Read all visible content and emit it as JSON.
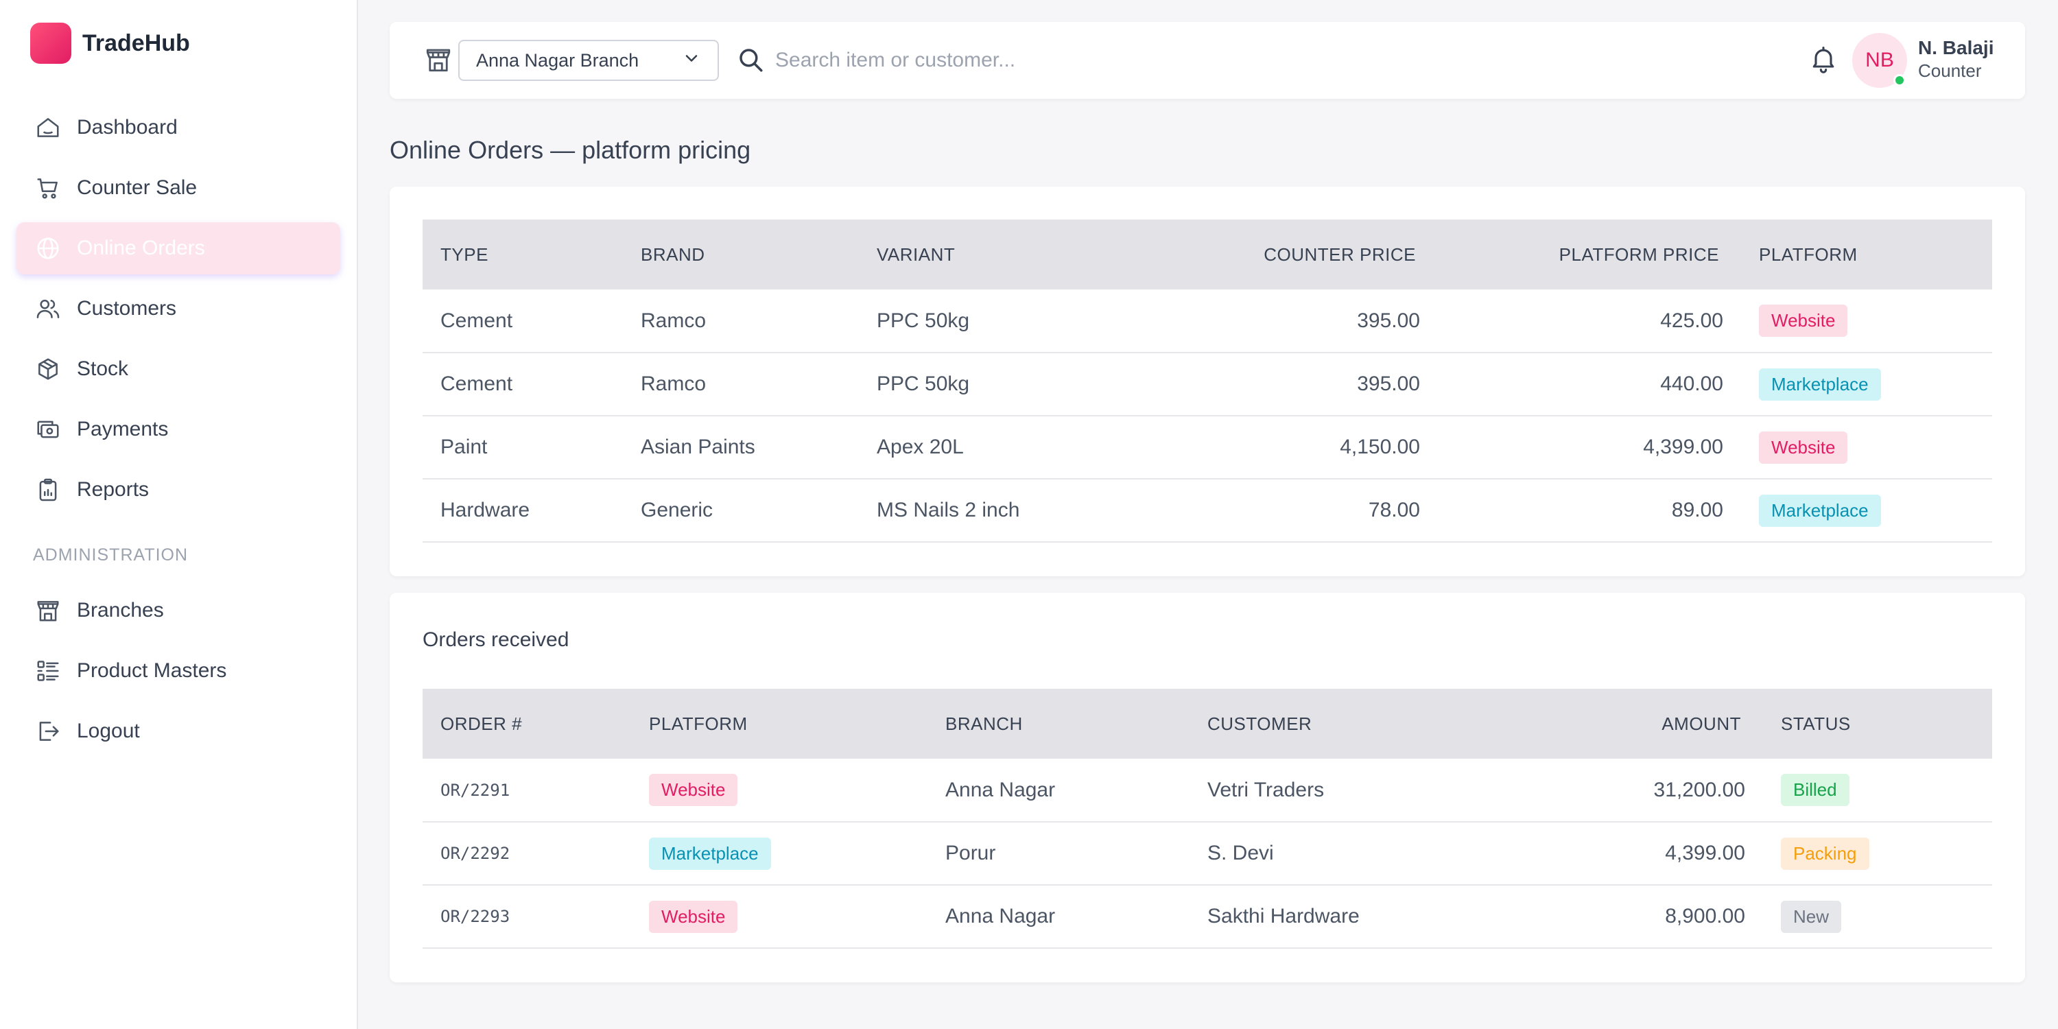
{
  "app": {
    "name": "TradeHub"
  },
  "sidebar": {
    "items": [
      {
        "label": "Dashboard",
        "icon": "home-icon"
      },
      {
        "label": "Counter Sale",
        "icon": "cart-icon"
      },
      {
        "label": "Online Orders",
        "icon": "globe-icon",
        "active": true
      },
      {
        "label": "Customers",
        "icon": "users-icon"
      },
      {
        "label": "Stock",
        "icon": "box-icon"
      },
      {
        "label": "Payments",
        "icon": "cash-icon"
      },
      {
        "label": "Reports",
        "icon": "clipboard-icon"
      }
    ],
    "section_label": "ADMINISTRATION",
    "admin_items": [
      {
        "label": "Branches",
        "icon": "store-icon"
      },
      {
        "label": "Product Masters",
        "icon": "list-icon"
      },
      {
        "label": "Logout",
        "icon": "logout-icon"
      }
    ]
  },
  "topbar": {
    "branch": "Anna Nagar Branch",
    "search_placeholder": "Search item or customer...",
    "user": {
      "initials": "NB",
      "name": "N. Balaji",
      "role": "Counter",
      "online": true
    }
  },
  "page": {
    "title": "Online Orders — platform pricing"
  },
  "pricing_table": {
    "columns": [
      "TYPE",
      "BRAND",
      "VARIANT",
      "COUNTER PRICE",
      "PLATFORM PRICE",
      "PLATFORM"
    ],
    "rows": [
      {
        "type": "Cement",
        "brand": "Ramco",
        "variant": "PPC 50kg",
        "counter_price": "395.00",
        "platform_price": "425.00",
        "platform": "Website"
      },
      {
        "type": "Cement",
        "brand": "Ramco",
        "variant": "PPC 50kg",
        "counter_price": "395.00",
        "platform_price": "440.00",
        "platform": "Marketplace"
      },
      {
        "type": "Paint",
        "brand": "Asian Paints",
        "variant": "Apex 20L",
        "counter_price": "4,150.00",
        "platform_price": "4,399.00",
        "platform": "Website"
      },
      {
        "type": "Hardware",
        "brand": "Generic",
        "variant": "MS Nails 2 inch",
        "counter_price": "78.00",
        "platform_price": "89.00",
        "platform": "Marketplace"
      }
    ]
  },
  "orders": {
    "title": "Orders received",
    "columns": [
      "ORDER #",
      "PLATFORM",
      "BRANCH",
      "CUSTOMER",
      "AMOUNT",
      "STATUS"
    ],
    "rows": [
      {
        "order_no": "OR/2291",
        "platform": "Website",
        "branch": "Anna Nagar",
        "customer": "Vetri Traders",
        "amount": "31,200.00",
        "status": "Billed"
      },
      {
        "order_no": "OR/2292",
        "platform": "Marketplace",
        "branch": "Porur",
        "customer": "S. Devi",
        "amount": "4,399.00",
        "status": "Packing"
      },
      {
        "order_no": "OR/2293",
        "platform": "Website",
        "branch": "Anna Nagar",
        "customer": "Sakthi Hardware",
        "amount": "8,900.00",
        "status": "New"
      }
    ]
  },
  "colors": {
    "brand": "#e11d63",
    "website_badge": "#e11d63",
    "marketplace_badge": "#0891b2",
    "billed": "#16a34a",
    "packing": "#f59e0b",
    "new": "#6b7280"
  }
}
